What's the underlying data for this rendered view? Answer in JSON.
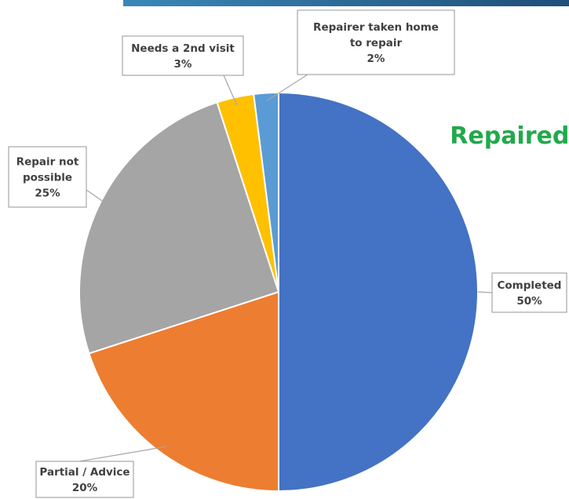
{
  "chart_data": {
    "type": "pie",
    "title": "Repaired?",
    "start_angle_deg": 0,
    "direction": "clockwise",
    "slices": [
      {
        "label": "Completed",
        "value": 50,
        "value_label": "50%",
        "color": "#4472c4",
        "callout_lines": [
          "Completed",
          "50%"
        ]
      },
      {
        "label": "Partial / Advice",
        "value": 20,
        "value_label": "20%",
        "color": "#ed7d31",
        "callout_lines": [
          "Partial / Advice",
          "20%"
        ]
      },
      {
        "label": "Repair not possible",
        "value": 25,
        "value_label": "25%",
        "color": "#a5a5a5",
        "callout_lines": [
          "Repair not",
          "possible",
          "25%"
        ]
      },
      {
        "label": "Needs a 2nd visit",
        "value": 3,
        "value_label": "3%",
        "color": "#ffc000",
        "callout_lines": [
          "Needs a 2nd visit",
          "3%"
        ]
      },
      {
        "label": "Repairer taken home to repair",
        "value": 2,
        "value_label": "2%",
        "color": "#5b9bd5",
        "callout_lines": [
          "Repairer taken home",
          "to repair",
          "2%"
        ]
      }
    ],
    "legend": "none",
    "data_labels": "callouts"
  },
  "colors": {
    "title": "#22a94b",
    "top_bar": "#2e6f9e"
  }
}
